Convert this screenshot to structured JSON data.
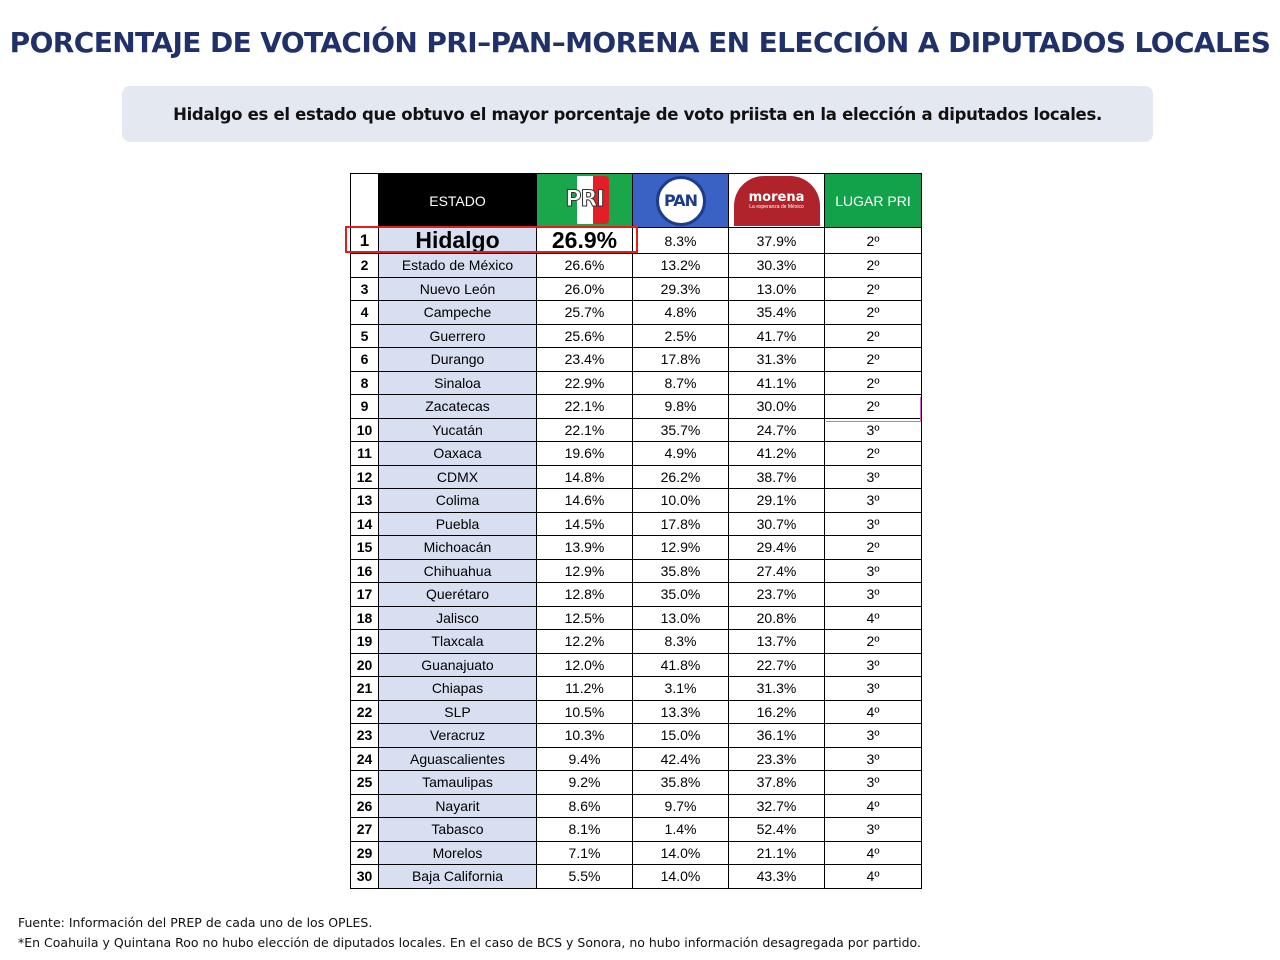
{
  "title": "PORCENTAJE DE VOTACIÓN PRI–PAN–MORENA EN ELECCIÓN A DIPUTADOS LOCALES",
  "subtitle": "Hidalgo es el estado que obtuvo el mayor porcentaje de voto priista en la elección a diputados locales.",
  "table": {
    "headers": {
      "estado": "ESTADO",
      "pri_logo": "PRI",
      "pan_logo": "PAN",
      "morena_logo": "morena",
      "morena_tagline": "La esperanza de México",
      "lugar": "LUGAR PRI"
    },
    "rows": [
      {
        "num": "1",
        "estado": "Hidalgo",
        "pri": "26.9%",
        "pan": "8.3%",
        "morena": "37.9%",
        "lugar": "2º"
      },
      {
        "num": "2",
        "estado": "Estado de México",
        "pri": "26.6%",
        "pan": "13.2%",
        "morena": "30.3%",
        "lugar": "2º"
      },
      {
        "num": "3",
        "estado": "Nuevo León",
        "pri": "26.0%",
        "pan": "29.3%",
        "morena": "13.0%",
        "lugar": "2º"
      },
      {
        "num": "4",
        "estado": "Campeche",
        "pri": "25.7%",
        "pan": "4.8%",
        "morena": "35.4%",
        "lugar": "2º"
      },
      {
        "num": "5",
        "estado": "Guerrero",
        "pri": "25.6%",
        "pan": "2.5%",
        "morena": "41.7%",
        "lugar": "2º"
      },
      {
        "num": "6",
        "estado": "Durango",
        "pri": "23.4%",
        "pan": "17.8%",
        "morena": "31.3%",
        "lugar": "2º"
      },
      {
        "num": "8",
        "estado": "Sinaloa",
        "pri": "22.9%",
        "pan": "8.7%",
        "morena": "41.1%",
        "lugar": "2º"
      },
      {
        "num": "9",
        "estado": "Zacatecas",
        "pri": "22.1%",
        "pan": "9.8%",
        "morena": "30.0%",
        "lugar": "2º"
      },
      {
        "num": "10",
        "estado": "Yucatán",
        "pri": "22.1%",
        "pan": "35.7%",
        "morena": "24.7%",
        "lugar": "3º"
      },
      {
        "num": "11",
        "estado": "Oaxaca",
        "pri": "19.6%",
        "pan": "4.9%",
        "morena": "41.2%",
        "lugar": "2º"
      },
      {
        "num": "12",
        "estado": "CDMX",
        "pri": "14.8%",
        "pan": "26.2%",
        "morena": "38.7%",
        "lugar": "3º"
      },
      {
        "num": "13",
        "estado": "Colima",
        "pri": "14.6%",
        "pan": "10.0%",
        "morena": "29.1%",
        "lugar": "3º"
      },
      {
        "num": "14",
        "estado": "Puebla",
        "pri": "14.5%",
        "pan": "17.8%",
        "morena": "30.7%",
        "lugar": "3º"
      },
      {
        "num": "15",
        "estado": "Michoacán",
        "pri": "13.9%",
        "pan": "12.9%",
        "morena": "29.4%",
        "lugar": "2º"
      },
      {
        "num": "16",
        "estado": "Chihuahua",
        "pri": "12.9%",
        "pan": "35.8%",
        "morena": "27.4%",
        "lugar": "3º"
      },
      {
        "num": "17",
        "estado": "Querétaro",
        "pri": "12.8%",
        "pan": "35.0%",
        "morena": "23.7%",
        "lugar": "3º"
      },
      {
        "num": "18",
        "estado": "Jalisco",
        "pri": "12.5%",
        "pan": "13.0%",
        "morena": "20.8%",
        "lugar": "4º"
      },
      {
        "num": "19",
        "estado": "Tlaxcala",
        "pri": "12.2%",
        "pan": "8.3%",
        "morena": "13.7%",
        "lugar": "2º"
      },
      {
        "num": "20",
        "estado": "Guanajuato",
        "pri": "12.0%",
        "pan": "41.8%",
        "morena": "22.7%",
        "lugar": "3º"
      },
      {
        "num": "21",
        "estado": "Chiapas",
        "pri": "11.2%",
        "pan": "3.1%",
        "morena": "31.3%",
        "lugar": "3º"
      },
      {
        "num": "22",
        "estado": "SLP",
        "pri": "10.5%",
        "pan": "13.3%",
        "morena": "16.2%",
        "lugar": "4º"
      },
      {
        "num": "23",
        "estado": "Veracruz",
        "pri": "10.3%",
        "pan": "15.0%",
        "morena": "36.1%",
        "lugar": "3º"
      },
      {
        "num": "24",
        "estado": "Aguascalientes",
        "pri": "9.4%",
        "pan": "42.4%",
        "morena": "23.3%",
        "lugar": "3º"
      },
      {
        "num": "25",
        "estado": "Tamaulipas",
        "pri": "9.2%",
        "pan": "35.8%",
        "morena": "37.8%",
        "lugar": "3º"
      },
      {
        "num": "26",
        "estado": "Nayarit",
        "pri": "8.6%",
        "pan": "9.7%",
        "morena": "32.7%",
        "lugar": "4º"
      },
      {
        "num": "27",
        "estado": "Tabasco",
        "pri": "8.1%",
        "pan": "1.4%",
        "morena": "52.4%",
        "lugar": "3º"
      },
      {
        "num": "29",
        "estado": "Morelos",
        "pri": "7.1%",
        "pan": "14.0%",
        "morena": "21.1%",
        "lugar": "4º"
      },
      {
        "num": "30",
        "estado": "Baja California",
        "pri": "5.5%",
        "pan": "14.0%",
        "morena": "43.3%",
        "lugar": "4º"
      }
    ]
  },
  "footnotes": {
    "source": "Fuente: Información del PREP de cada uno de los OPLES.",
    "note": "*En Coahuila y Quintana Roo no hubo elección de diputados locales. En el caso de BCS y Sonora, no hubo información desagregada por partido."
  },
  "colors": {
    "title": "#1f3168",
    "subtitle_bg": "#e4e8f1",
    "state_col_bg": "#d8dff0",
    "pri_green": "#1aa64a",
    "pan_blue": "#3a62c4",
    "morena_red": "#b0232a",
    "highlight": "#e02020"
  }
}
